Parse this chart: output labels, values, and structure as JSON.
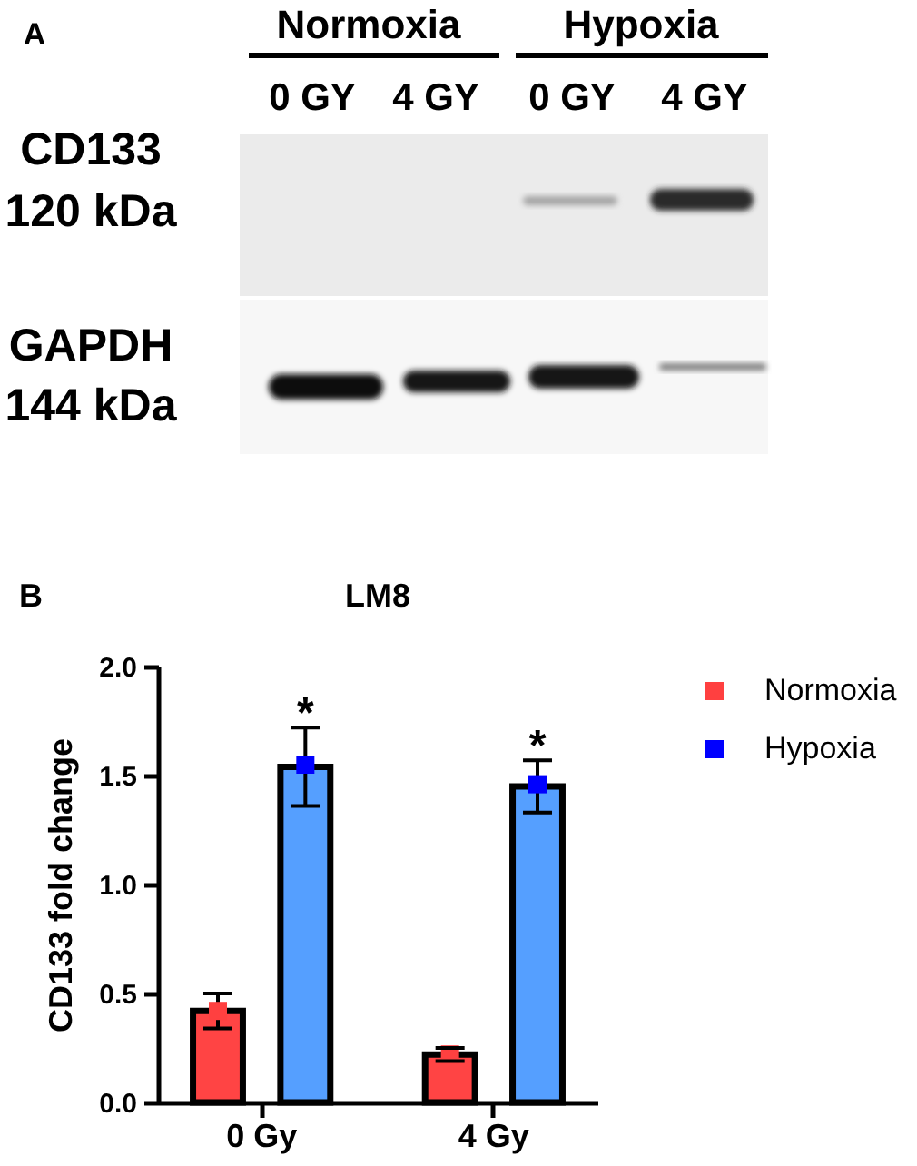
{
  "chart_data": [
    {
      "type": "other",
      "annotations": [
        "A",
        "Normoxia",
        "Hypoxia",
        "0 GY",
        "4 GY",
        "0 GY",
        "4 GY",
        "CD133",
        "120 kDa",
        "GAPDH",
        "144 kDa"
      ]
    },
    {
      "type": "bar",
      "title": "LM8",
      "ylabel": "CD133 fold change",
      "categories": [
        "0 Gy",
        "4 Gy"
      ],
      "series": [
        {
          "color": "#ff4444",
          "values": [
            0.42,
            0.22
          ],
          "errors": [
            0.08,
            0.03
          ]
        },
        {
          "color": "#559fff",
          "values": [
            1.54,
            1.45
          ],
          "errors": [
            0.18,
            0.12
          ]
        },
        {
          "type": "scatter",
          "name": "Normoxia",
          "color": "#ff4040",
          "x": [
            "0 Gy",
            "4 Gy"
          ],
          "values": [
            0.42,
            0.22
          ]
        },
        {
          "type": "scatter",
          "name": "Hypoxia",
          "color": "#0000ff",
          "x": [
            "0 Gy",
            "4 Gy"
          ],
          "values": [
            1.55,
            1.46
          ]
        }
      ],
      "ylim": [
        0,
        2
      ],
      "yticks": [
        {
          "value": 0,
          "label": "0.0"
        },
        0.5,
        {
          "value": 1,
          "label": "1.0"
        },
        1.5,
        {
          "value": 2,
          "label": "2.0"
        }
      ],
      "marker": "square",
      "legend": "top right",
      "annotations": [
        "B",
        "*",
        "*"
      ]
    }
  ]
}
